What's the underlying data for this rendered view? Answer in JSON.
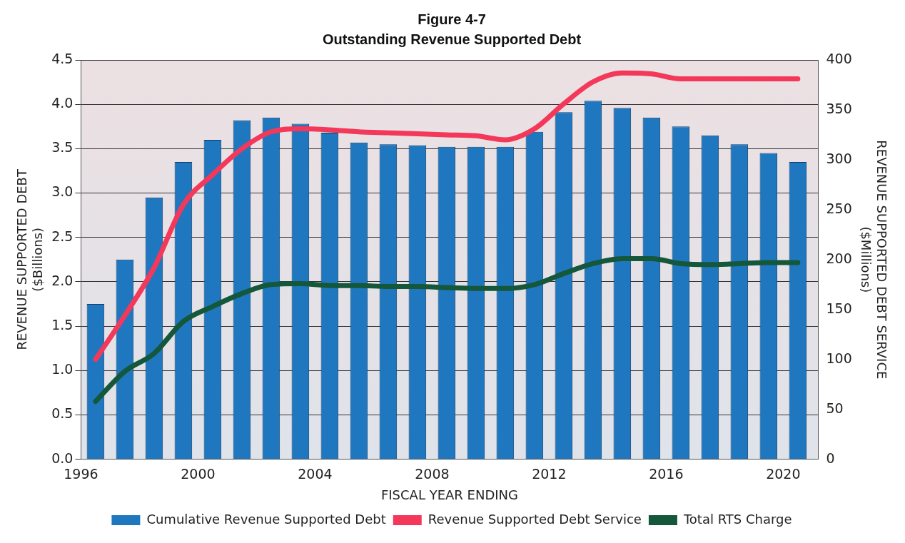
{
  "chart_data": {
    "type": "bar",
    "title": "Figure 4-7",
    "subtitle": "Outstanding Revenue Supported Debt",
    "xlabel": "FISCAL YEAR ENDING",
    "ylabel": "REVENUE SUPPORTED DEBT\n($Billions)",
    "y2label": "REVENUE SUPPORTED DEBT SERVICE\n($Millions)",
    "x": [
      1996.5,
      1997.5,
      1998.5,
      1999.5,
      2000.5,
      2001.5,
      2002.5,
      2003.5,
      2004.5,
      2005.5,
      2006.5,
      2007.5,
      2008.5,
      2009.5,
      2010.5,
      2011.5,
      2012.5,
      2013.5,
      2014.5,
      2015.5,
      2016.5,
      2017.5,
      2018.5,
      2019.5,
      2020.5
    ],
    "series": [
      {
        "name": "Cumulative Revenue Supported Debt",
        "color": "#1f77c0",
        "values": [
          1.75,
          2.25,
          2.95,
          3.35,
          3.6,
          3.82,
          3.85,
          3.78,
          3.68,
          3.57,
          3.55,
          3.54,
          3.52,
          3.52,
          3.52,
          3.69,
          3.91,
          4.04,
          3.96,
          3.85,
          3.75,
          3.65,
          3.55,
          3.45,
          3.35
        ]
      },
      {
        "name": "Revenue Supported Debt Service",
        "type": "line",
        "axis": "y2",
        "color": "#f4385a",
        "values": [
          100,
          144,
          192,
          255,
          285,
          311,
          328,
          331,
          330,
          328,
          327,
          326,
          325,
          324,
          320,
          331,
          356,
          378,
          387,
          386,
          381,
          381,
          381,
          381,
          381
        ]
      },
      {
        "name": "Total RTS Charge",
        "type": "line",
        "axis": "y2",
        "color": "#14573a",
        "values": [
          58,
          88,
          106,
          138,
          153,
          166,
          175,
          176,
          174,
          174,
          173,
          173,
          172,
          171,
          171,
          175,
          186,
          196,
          201,
          201,
          196,
          195,
          196,
          197,
          197
        ]
      }
    ],
    "xlim": [
      1996,
      2021.2
    ],
    "xticks": [
      1996,
      2000,
      2004,
      2008,
      2012,
      2016,
      2020
    ],
    "ylim": [
      0,
      4.5
    ],
    "yticks": [
      {
        "value": 0,
        "label": "0.0"
      },
      0.5,
      {
        "value": 1,
        "label": "1.0"
      },
      1.5,
      {
        "value": 2,
        "label": "2.0"
      },
      2.5,
      {
        "value": 3,
        "label": "3.0"
      },
      3.5,
      {
        "value": 4,
        "label": "4.0"
      },
      4.5
    ],
    "y2lim": [
      0,
      400
    ],
    "y2ticks": [
      0,
      50,
      100,
      150,
      200,
      250,
      300,
      350,
      400
    ],
    "grid": "y",
    "legend": "bottom",
    "marker": "none",
    "line_style": "solid"
  }
}
